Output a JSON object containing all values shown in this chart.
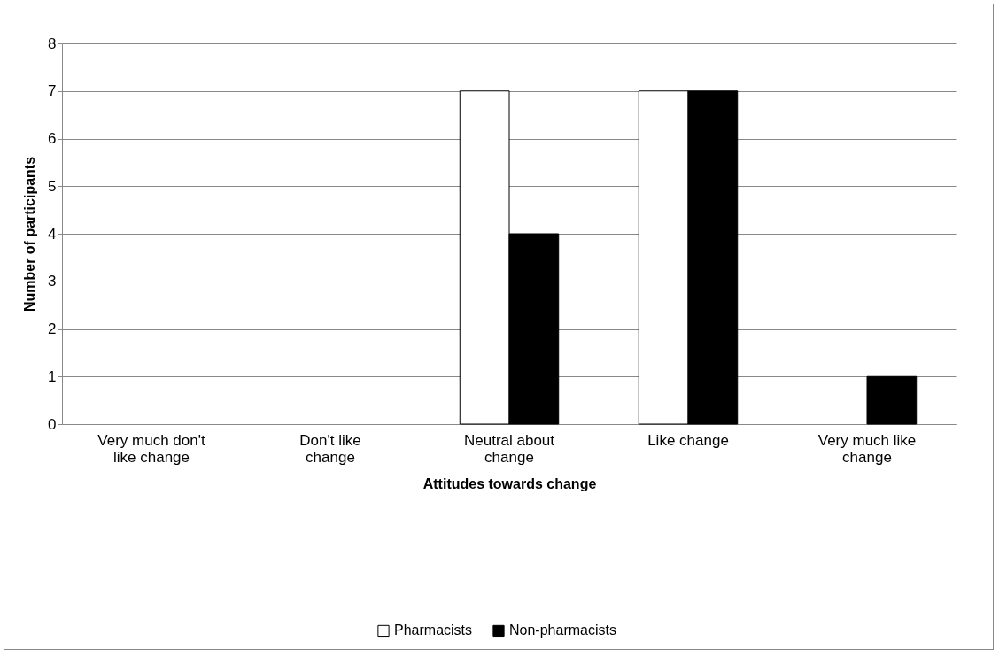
{
  "chart_data": {
    "type": "bar",
    "xlabel": "Attitudes towards change",
    "ylabel": "Number of participants",
    "categories": [
      "Very much don't like change",
      "Don't like change",
      "Neutral about change",
      "Like change",
      "Very much like change"
    ],
    "series": [
      {
        "name": "Pharmacists",
        "color": "#ffffff",
        "values": [
          0,
          0,
          7,
          7,
          0
        ]
      },
      {
        "name": "Non-pharmacists",
        "color": "#000000",
        "values": [
          0,
          0,
          4,
          7,
          1
        ]
      }
    ],
    "ylim": [
      0,
      8
    ],
    "yticks": [
      0,
      1,
      2,
      3,
      4,
      5,
      6,
      7,
      8
    ],
    "grid": "y",
    "legend": "bottom"
  }
}
